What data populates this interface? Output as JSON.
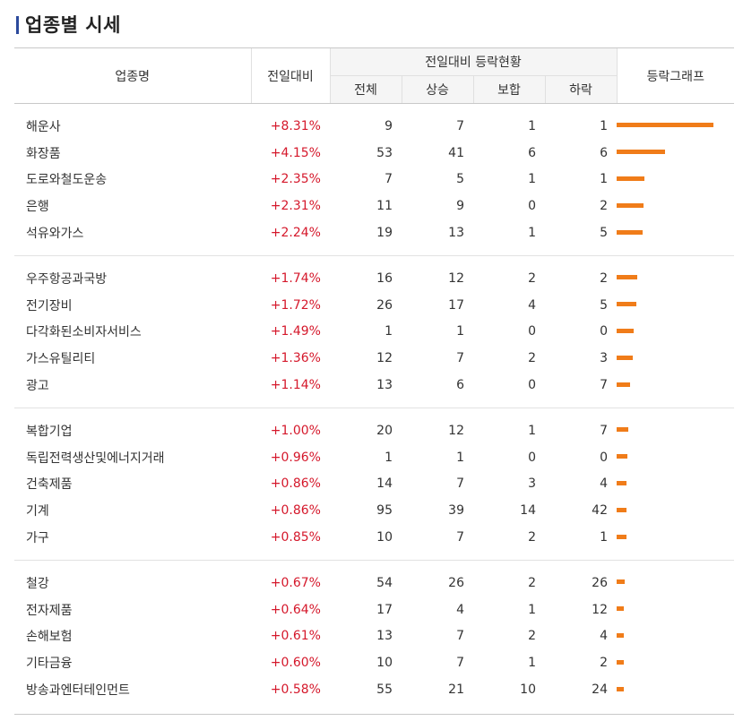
{
  "title": "업종별 시세",
  "header": {
    "name": "업종명",
    "change": "전일대비",
    "group": "전일대비 등락현황",
    "total": "전체",
    "up": "상승",
    "flat": "보합",
    "down": "하락",
    "graph": "등락그래프"
  },
  "colors": {
    "accent_bar": "#f07c19",
    "up_text": "#d5182b",
    "title_mark": "#2c4a9c"
  },
  "groups": [
    [
      {
        "name": "해운사",
        "change": "+8.31%",
        "total": "9",
        "up": "7",
        "flat": "1",
        "down": "1",
        "pct": 8.31
      },
      {
        "name": "화장품",
        "change": "+4.15%",
        "total": "53",
        "up": "41",
        "flat": "6",
        "down": "6",
        "pct": 4.15
      },
      {
        "name": "도로와철도운송",
        "change": "+2.35%",
        "total": "7",
        "up": "5",
        "flat": "1",
        "down": "1",
        "pct": 2.35
      },
      {
        "name": "은행",
        "change": "+2.31%",
        "total": "11",
        "up": "9",
        "flat": "0",
        "down": "2",
        "pct": 2.31
      },
      {
        "name": "석유와가스",
        "change": "+2.24%",
        "total": "19",
        "up": "13",
        "flat": "1",
        "down": "5",
        "pct": 2.24
      }
    ],
    [
      {
        "name": "우주항공과국방",
        "change": "+1.74%",
        "total": "16",
        "up": "12",
        "flat": "2",
        "down": "2",
        "pct": 1.74
      },
      {
        "name": "전기장비",
        "change": "+1.72%",
        "total": "26",
        "up": "17",
        "flat": "4",
        "down": "5",
        "pct": 1.72
      },
      {
        "name": "다각화된소비자서비스",
        "change": "+1.49%",
        "total": "1",
        "up": "1",
        "flat": "0",
        "down": "0",
        "pct": 1.49
      },
      {
        "name": "가스유틸리티",
        "change": "+1.36%",
        "total": "12",
        "up": "7",
        "flat": "2",
        "down": "3",
        "pct": 1.36
      },
      {
        "name": "광고",
        "change": "+1.14%",
        "total": "13",
        "up": "6",
        "flat": "0",
        "down": "7",
        "pct": 1.14
      }
    ],
    [
      {
        "name": "복합기업",
        "change": "+1.00%",
        "total": "20",
        "up": "12",
        "flat": "1",
        "down": "7",
        "pct": 1.0
      },
      {
        "name": "독립전력생산및에너지거래",
        "change": "+0.96%",
        "total": "1",
        "up": "1",
        "flat": "0",
        "down": "0",
        "pct": 0.96
      },
      {
        "name": "건축제품",
        "change": "+0.86%",
        "total": "14",
        "up": "7",
        "flat": "3",
        "down": "4",
        "pct": 0.86
      },
      {
        "name": "기계",
        "change": "+0.86%",
        "total": "95",
        "up": "39",
        "flat": "14",
        "down": "42",
        "pct": 0.86
      },
      {
        "name": "가구",
        "change": "+0.85%",
        "total": "10",
        "up": "7",
        "flat": "2",
        "down": "1",
        "pct": 0.85
      }
    ],
    [
      {
        "name": "철강",
        "change": "+0.67%",
        "total": "54",
        "up": "26",
        "flat": "2",
        "down": "26",
        "pct": 0.67
      },
      {
        "name": "전자제품",
        "change": "+0.64%",
        "total": "17",
        "up": "4",
        "flat": "1",
        "down": "12",
        "pct": 0.64
      },
      {
        "name": "손해보험",
        "change": "+0.61%",
        "total": "13",
        "up": "7",
        "flat": "2",
        "down": "4",
        "pct": 0.61
      },
      {
        "name": "기타금융",
        "change": "+0.60%",
        "total": "10",
        "up": "7",
        "flat": "1",
        "down": "2",
        "pct": 0.6
      },
      {
        "name": "방송과엔터테인먼트",
        "change": "+0.58%",
        "total": "55",
        "up": "21",
        "flat": "10",
        "down": "24",
        "pct": 0.58
      }
    ]
  ]
}
